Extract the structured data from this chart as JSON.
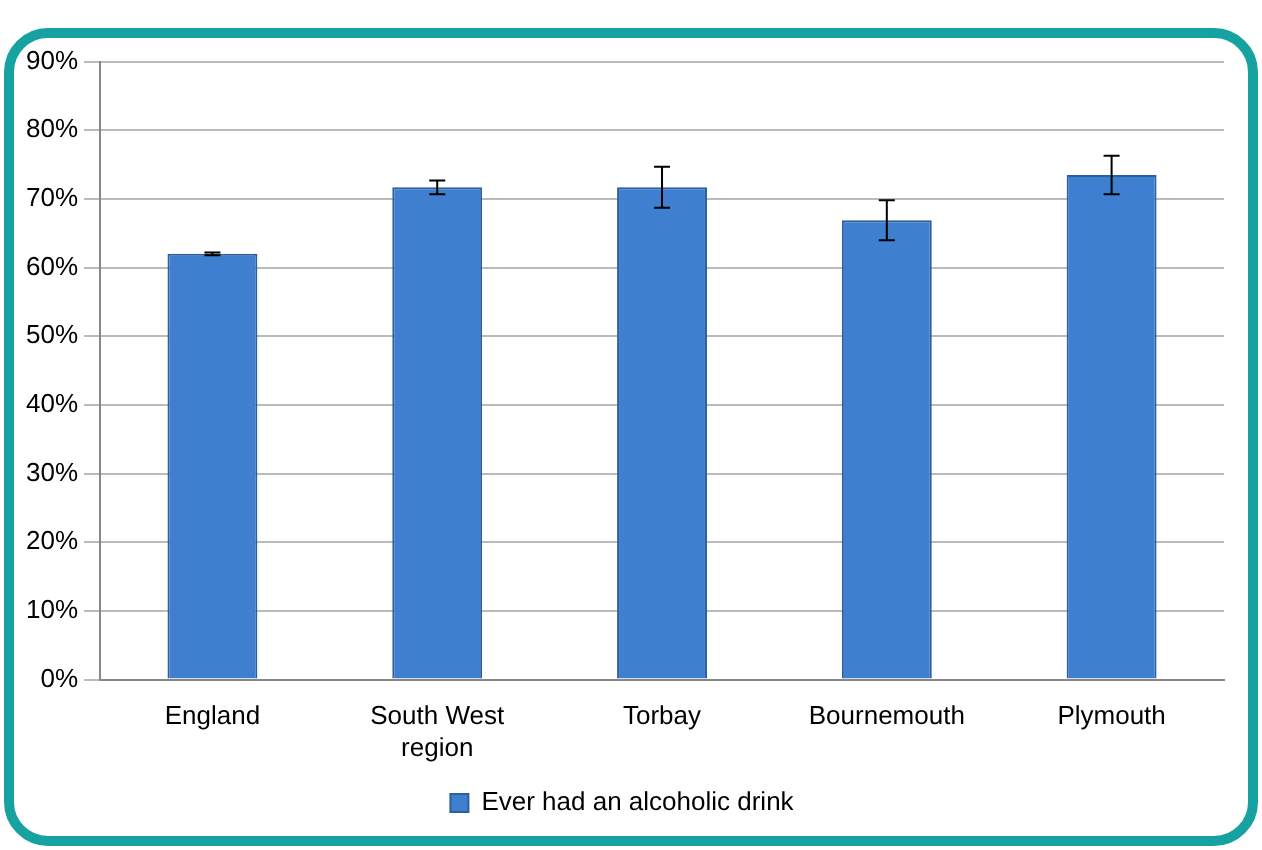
{
  "chart_data": {
    "type": "bar",
    "categories": [
      "England",
      "South West region",
      "Torbay",
      "Bournemouth",
      "Plymouth"
    ],
    "series": [
      {
        "name": "Ever had an alcoholic drink",
        "color": "#3f7fcf",
        "values": [
          62,
          71.7,
          71.7,
          66.9,
          73.5
        ],
        "errors": [
          0.2,
          1,
          3,
          2.9,
          2.8
        ]
      }
    ],
    "ylim": [
      0,
      90
    ],
    "yticks": [
      {
        "value": 0,
        "label": "0%"
      },
      {
        "value": 10,
        "label": "10%"
      },
      {
        "value": 20,
        "label": "20%"
      },
      {
        "value": 30,
        "label": "30%"
      },
      {
        "value": 40,
        "label": "40%"
      },
      {
        "value": 50,
        "label": "50%"
      },
      {
        "value": 60,
        "label": "60%"
      },
      {
        "value": 70,
        "label": "70%"
      },
      {
        "value": 80,
        "label": "80%"
      },
      {
        "value": 90,
        "label": "90%"
      }
    ],
    "grid": "y",
    "legend": "bottom"
  }
}
